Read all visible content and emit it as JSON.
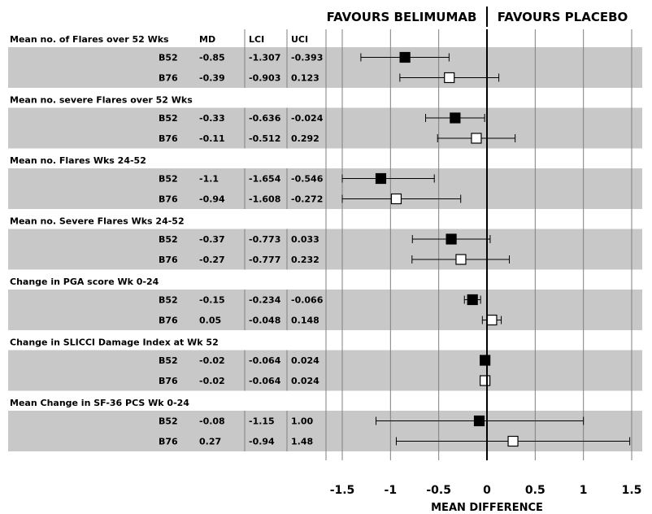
{
  "chart_data": {
    "type": "forest",
    "header_left": "FAVOURS BELIMUMAB",
    "header_right": "FAVOURS PLACEBO",
    "columns": [
      "MD",
      "LCI",
      "UCI"
    ],
    "xlabel": "MEAN DIFFERENCE",
    "xlim": [
      -1.5,
      1.5
    ],
    "xticks": [
      -1.5,
      -1,
      -0.5,
      0,
      0.5,
      1,
      1.5
    ],
    "xtick_labels": [
      "-1.5",
      "-1",
      "-0.5",
      "0",
      "0.5",
      "1",
      "1.5"
    ],
    "reference_line": 0,
    "marker_colors": {
      "B52": "#000000",
      "B76": "#ffffff"
    },
    "groups": [
      {
        "title": "Mean no. of Flares over 52 Wks",
        "show_col_headers": true,
        "rows": [
          {
            "label": "B52",
            "md": -0.85,
            "lci": -1.307,
            "uci": -0.393,
            "md_text": "-0.85",
            "lci_text": "-1.307",
            "uci_text": "-0.393"
          },
          {
            "label": "B76",
            "md": -0.39,
            "lci": -0.903,
            "uci": 0.123,
            "md_text": "-0.39",
            "lci_text": "-0.903",
            "uci_text": "0.123"
          }
        ]
      },
      {
        "title": "Mean no. severe Flares over 52 Wks",
        "rows": [
          {
            "label": "B52",
            "md": -0.33,
            "lci": -0.636,
            "uci": -0.024,
            "md_text": "-0.33",
            "lci_text": "-0.636",
            "uci_text": "-0.024"
          },
          {
            "label": "B76",
            "md": -0.11,
            "lci": -0.512,
            "uci": 0.292,
            "md_text": "-0.11",
            "lci_text": "-0.512",
            "uci_text": "0.292"
          }
        ]
      },
      {
        "title": "Mean no. Flares Wks 24-52",
        "rows": [
          {
            "label": "B52",
            "md": -1.1,
            "lci": -1.654,
            "uci": -0.546,
            "md_text": "-1.1",
            "lci_text": "-1.654",
            "uci_text": "-0.546"
          },
          {
            "label": "B76",
            "md": -0.94,
            "lci": -1.608,
            "uci": -0.272,
            "md_text": "-0.94",
            "lci_text": "-1.608",
            "uci_text": "-0.272"
          }
        ]
      },
      {
        "title": "Mean no. Severe Flares Wks 24-52",
        "rows": [
          {
            "label": "B52",
            "md": -0.37,
            "lci": -0.773,
            "uci": 0.033,
            "md_text": "-0.37",
            "lci_text": "-0.773",
            "uci_text": "0.033"
          },
          {
            "label": "B76",
            "md": -0.27,
            "lci": -0.777,
            "uci": 0.232,
            "md_text": "-0.27",
            "lci_text": "-0.777",
            "uci_text": "0.232"
          }
        ]
      },
      {
        "title": "Change in PGA score Wk 0-24",
        "rows": [
          {
            "label": "B52",
            "md": -0.15,
            "lci": -0.234,
            "uci": -0.066,
            "md_text": "-0.15",
            "lci_text": "-0.234",
            "uci_text": "-0.066"
          },
          {
            "label": "B76",
            "md": 0.05,
            "lci": -0.048,
            "uci": 0.148,
            "md_text": "0.05",
            "lci_text": "-0.048",
            "uci_text": "0.148"
          }
        ]
      },
      {
        "title": "Change in SLICCI Damage Index at Wk 52",
        "rows": [
          {
            "label": "B52",
            "md": -0.02,
            "lci": -0.064,
            "uci": 0.024,
            "md_text": "-0.02",
            "lci_text": "-0.064",
            "uci_text": "0.024"
          },
          {
            "label": "B76",
            "md": -0.02,
            "lci": -0.064,
            "uci": 0.024,
            "md_text": "-0.02",
            "lci_text": "-0.064",
            "uci_text": "0.024"
          }
        ]
      },
      {
        "title": "Mean Change in SF-36 PCS Wk 0-24",
        "rows": [
          {
            "label": "B52",
            "md": -0.08,
            "lci": -1.15,
            "uci": 1.0,
            "md_text": "-0.08",
            "lci_text": "-1.15",
            "uci_text": "1.00"
          },
          {
            "label": "B76",
            "md": 0.27,
            "lci": -0.94,
            "uci": 1.48,
            "md_text": "0.27",
            "lci_text": "-0.94",
            "uci_text": "1.48"
          }
        ]
      }
    ]
  }
}
